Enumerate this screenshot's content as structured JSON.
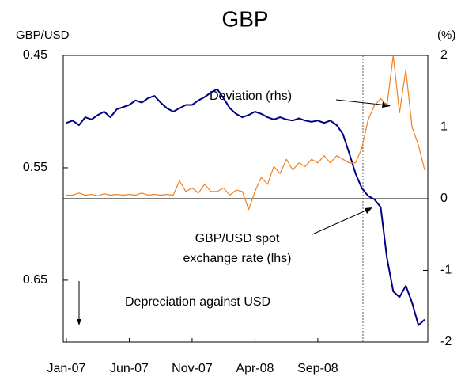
{
  "chart_data": {
    "type": "line",
    "title": "GBP",
    "y_label": "GBP/USD",
    "y2_label": "(%)",
    "annotations": [
      "Deviation (rhs)",
      "GBP/USD spot",
      "exchange rate (lhs)",
      "Depreciation against USD"
    ],
    "categories": [
      "Jan-07",
      null,
      null,
      null,
      null,
      null,
      null,
      null,
      null,
      null,
      "Jun-07",
      null,
      null,
      null,
      null,
      null,
      null,
      null,
      null,
      null,
      "Nov-07",
      null,
      null,
      null,
      null,
      null,
      null,
      null,
      null,
      null,
      "Apr-08",
      null,
      null,
      null,
      null,
      null,
      null,
      null,
      null,
      null,
      "Sep-08",
      null,
      null,
      null,
      null,
      null,
      null,
      null,
      null,
      null,
      null,
      null,
      null,
      null,
      null,
      null,
      null,
      null
    ],
    "ylim": [
      0.45,
      0.705
    ],
    "y_inverted": true,
    "yticks": [
      0.45,
      0.55,
      0.65
    ],
    "y2lim": [
      -2,
      2
    ],
    "y2ticks": [
      2,
      1,
      0,
      -1,
      -2
    ],
    "series": [
      {
        "name": "GBP/USD spot exchange rate (lhs)",
        "color": "#000080",
        "axis": "y",
        "values": [
          0.51,
          0.508,
          0.512,
          0.505,
          0.507,
          0.503,
          0.5,
          0.505,
          0.498,
          0.496,
          0.494,
          0.49,
          0.492,
          0.488,
          0.486,
          0.492,
          0.497,
          0.5,
          0.497,
          0.494,
          0.494,
          0.49,
          0.487,
          0.483,
          0.48,
          0.488,
          0.497,
          0.502,
          0.505,
          0.503,
          0.5,
          0.502,
          0.505,
          0.507,
          0.505,
          0.507,
          0.508,
          0.506,
          0.508,
          0.509,
          0.508,
          0.51,
          0.508,
          0.512,
          0.52,
          0.537,
          0.555,
          0.568,
          0.575,
          0.578,
          0.585,
          0.63,
          0.66,
          0.665,
          0.655,
          0.67,
          0.69,
          0.685
        ]
      },
      {
        "name": "Deviation (rhs)",
        "color": "#f08020",
        "axis": "y2",
        "values": [
          0.05,
          0.05,
          0.08,
          0.05,
          0.06,
          0.04,
          0.07,
          0.05,
          0.06,
          0.05,
          0.06,
          0.05,
          0.08,
          0.05,
          0.06,
          0.05,
          0.06,
          0.05,
          0.25,
          0.1,
          0.15,
          0.08,
          0.2,
          0.1,
          0.1,
          0.15,
          0.05,
          0.12,
          0.1,
          -0.15,
          0.1,
          0.3,
          0.2,
          0.45,
          0.35,
          0.55,
          0.4,
          0.5,
          0.45,
          0.55,
          0.5,
          0.6,
          0.5,
          0.6,
          0.55,
          0.5,
          0.5,
          0.7,
          1.1,
          1.3,
          1.4,
          1.3,
          2.0,
          1.2,
          1.8,
          1.0,
          0.75,
          0.4
        ]
      }
    ]
  }
}
